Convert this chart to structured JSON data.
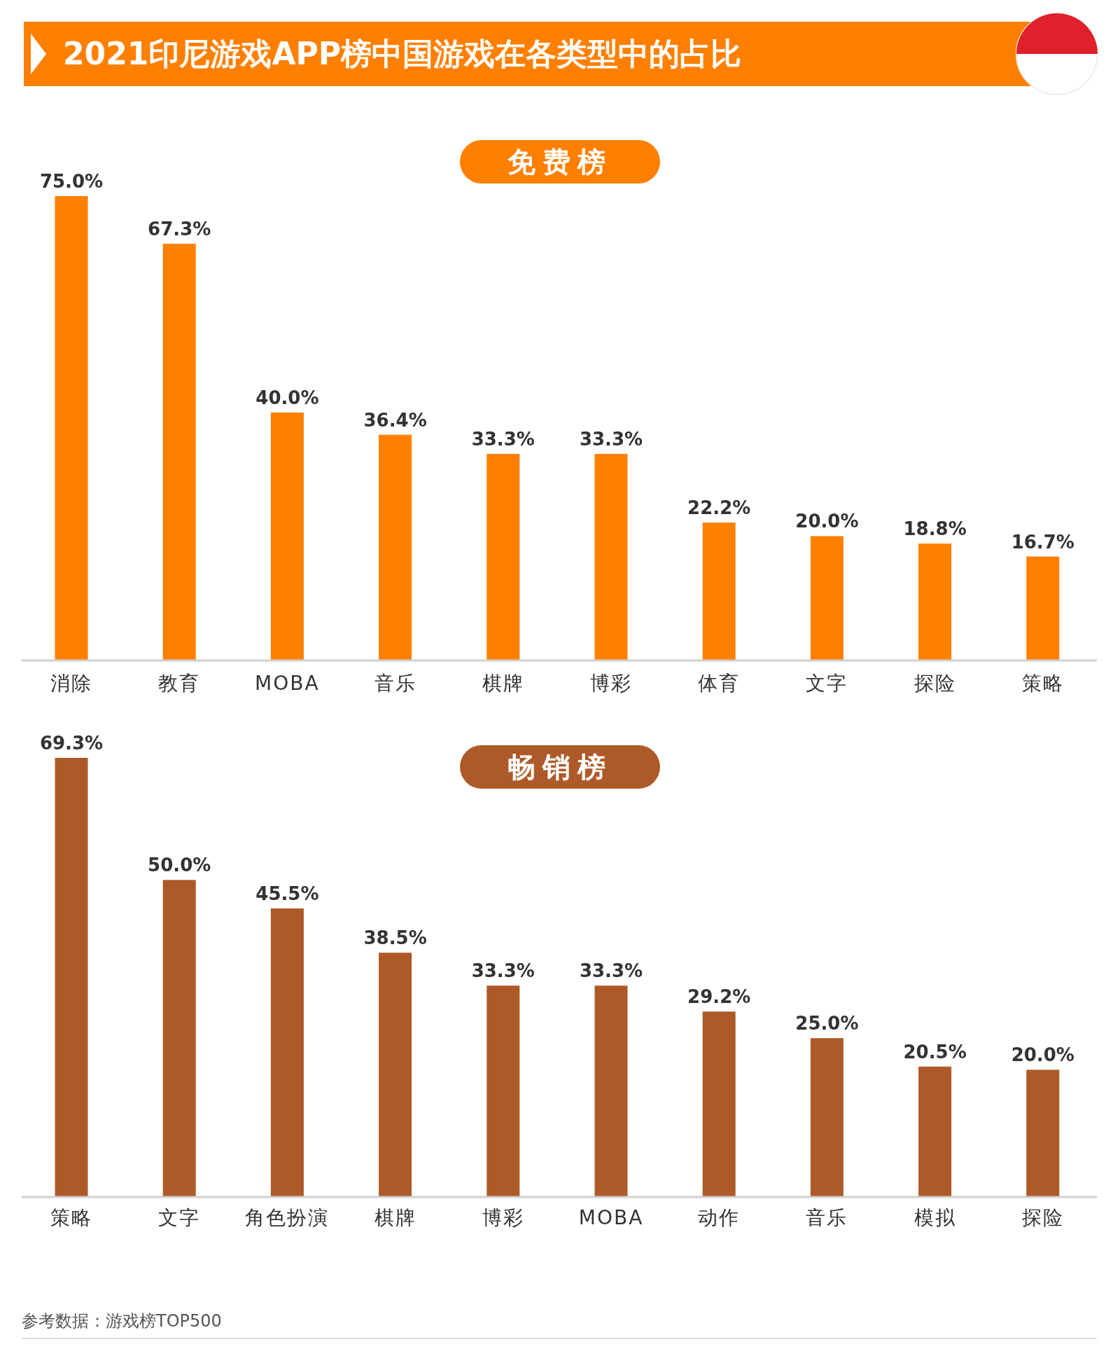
{
  "chart_data": [
    {
      "type": "bar",
      "title": "2021印尼游戏APP榜中国游戏在各类型中的占比",
      "subtitle": "免费榜",
      "categories": [
        "消除",
        "教育",
        "MOBA",
        "音乐",
        "棋牌",
        "博彩",
        "体育",
        "文字",
        "探险",
        "策略"
      ],
      "values": [
        75.0,
        67.3,
        40.0,
        36.4,
        33.3,
        33.3,
        22.2,
        20.0,
        18.8,
        16.7
      ],
      "value_labels": [
        "75.0%",
        "67.3%",
        "40.0%",
        "36.4%",
        "33.3%",
        "33.3%",
        "22.2%",
        "20.0%",
        "18.8%",
        "16.7%"
      ],
      "color": "#ff7f00"
    },
    {
      "type": "bar",
      "subtitle": "畅销榜",
      "categories": [
        "策略",
        "文字",
        "角色扮演",
        "棋牌",
        "博彩",
        "MOBA",
        "动作",
        "音乐",
        "模拟",
        "探险"
      ],
      "values": [
        69.3,
        50.0,
        45.5,
        38.5,
        33.3,
        33.3,
        29.2,
        25.0,
        20.5,
        20.0
      ],
      "value_labels": [
        "69.3%",
        "50.0%",
        "45.5%",
        "38.5%",
        "33.3%",
        "33.3%",
        "29.2%",
        "25.0%",
        "20.5%",
        "20.0%"
      ],
      "color": "#ad5a28",
      "annotations": [
        "参考数据：游戏榜TOP500"
      ]
    }
  ]
}
